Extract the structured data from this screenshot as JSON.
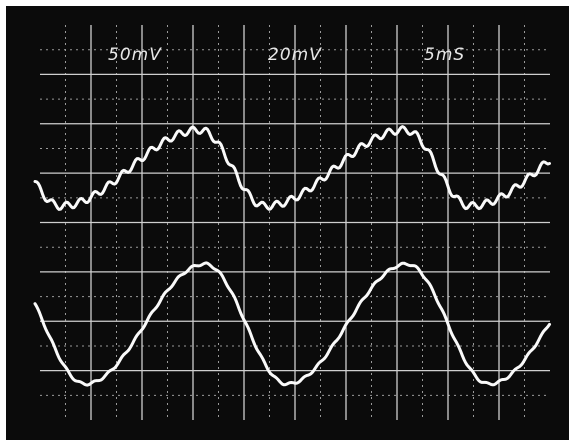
{
  "labels": {
    "channel_1": "50mV",
    "channel_2": "20mV",
    "timebase": "5mS"
  }
}
